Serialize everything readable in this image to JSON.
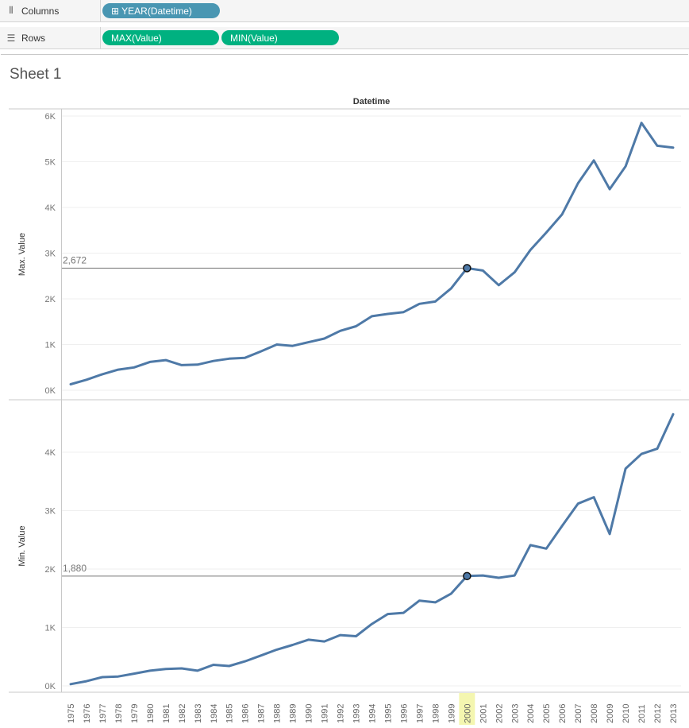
{
  "shelves": {
    "columns": {
      "label": "Columns",
      "icon": "columns-icon",
      "pills": [
        {
          "label": "⊞ YEAR(Datetime)",
          "color": "#4996b2"
        }
      ]
    },
    "rows": {
      "label": "Rows",
      "icon": "rows-icon",
      "pills": [
        {
          "label": "MAX(Value)",
          "color": "#00b180"
        },
        {
          "label": "MIN(Value)",
          "color": "#00b180"
        }
      ]
    }
  },
  "sheet": {
    "title": "Sheet 1"
  },
  "chart_data": {
    "type": "line",
    "title": "",
    "column_header": "Datetime",
    "line_color": "#4e79a7",
    "x": [
      1975,
      1976,
      1977,
      1978,
      1979,
      1980,
      1981,
      1982,
      1983,
      1984,
      1985,
      1986,
      1987,
      1988,
      1989,
      1990,
      1991,
      1992,
      1993,
      1994,
      1995,
      1996,
      1997,
      1998,
      1999,
      2000,
      2001,
      2002,
      2003,
      2004,
      2005,
      2006,
      2007,
      2008,
      2009,
      2010,
      2011,
      2012,
      2013
    ],
    "highlight": {
      "x": 2000,
      "labels": [
        "2,672",
        "1,880"
      ]
    },
    "panes": [
      {
        "ylabel": "Max. Value",
        "ylim": [
          0,
          6000
        ],
        "ticks": [
          0,
          1000,
          2000,
          3000,
          4000,
          5000,
          6000
        ],
        "tick_labels": [
          "0K",
          "1K",
          "2K",
          "3K",
          "4K",
          "5K",
          "6K"
        ],
        "series": [
          {
            "values": [
              130,
              230,
              350,
              450,
              500,
              620,
              660,
              550,
              560,
              640,
              690,
              710,
              850,
              1000,
              970,
              1050,
              1130,
              1300,
              1400,
              1620,
              1670,
              1710,
              1890,
              1940,
              2230,
              2672,
              2620,
              2300,
              2580,
              3070,
              3450,
              3850,
              4530,
              5030,
              4400,
              4900,
              5850,
              5350,
              5310
            ]
          }
        ]
      },
      {
        "ylabel": "Min. Value",
        "ylim": [
          0,
          4700
        ],
        "ticks": [
          0,
          1000,
          2000,
          3000,
          4000
        ],
        "tick_labels": [
          "0K",
          "1K",
          "2K",
          "3K",
          "4K"
        ],
        "series": [
          {
            "values": [
              30,
              80,
              150,
              160,
              210,
              260,
              290,
              300,
              260,
              360,
              340,
              420,
              520,
              620,
              700,
              790,
              760,
              870,
              850,
              1060,
              1230,
              1250,
              1460,
              1430,
              1580,
              1880,
              1890,
              1850,
              1890,
              2410,
              2350,
              2740,
              3120,
              3230,
              2600,
              3720,
              3970,
              4060,
              4650
            ]
          }
        ]
      }
    ]
  }
}
